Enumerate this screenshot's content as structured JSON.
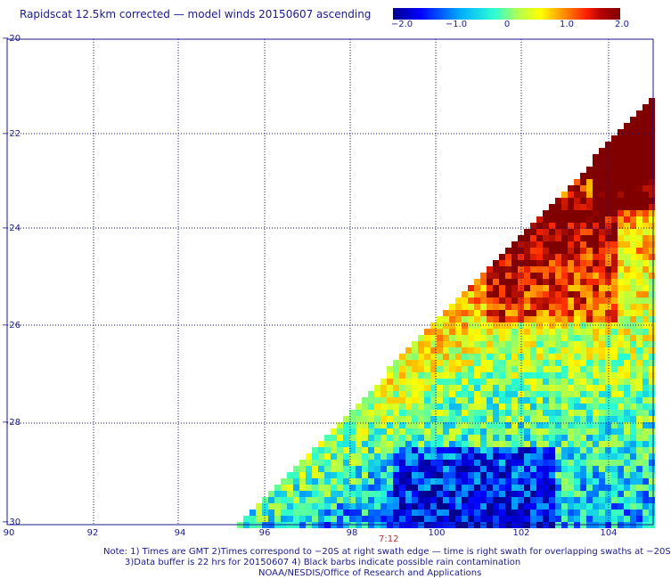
{
  "title": "Rapidscat 12.5km corrected — model winds 20150607 ascending",
  "colorbar": {
    "labels": [
      "−2.0",
      "−1.0",
      "0",
      "1.0",
      "2.0"
    ],
    "values": [
      -2.0,
      -1.0,
      0,
      1.0,
      2.0
    ],
    "colors": [
      "#00008f",
      "#0000ff",
      "#00a0ff",
      "#20ffe0",
      "#a0ff60",
      "#ffff00",
      "#ff9000",
      "#ff2000",
      "#a00000",
      "#800000"
    ]
  },
  "map": {
    "lon_ticks": [
      "90",
      "92",
      "94",
      "96",
      "98",
      "100",
      "102",
      "104"
    ],
    "lat_ticks": [
      "−20",
      "−22",
      "−24",
      "−26",
      "−28",
      "−30"
    ],
    "lon_range": [
      90,
      104.9
    ],
    "lat_range": [
      -20,
      -30
    ],
    "grid": "dotted",
    "swath_time": "7:12"
  },
  "notes": [
    "Note: 1) Times are GMT 2)Times correspond to −20S at right swath edge — time is right swath for overlapping swaths at −20S",
    "3)Data buffer is 22 hrs for 20150607 4) Black barbs indicate possible rain contamination",
    "NOAA/NESDIS/Office of Research and Applications"
  ]
}
